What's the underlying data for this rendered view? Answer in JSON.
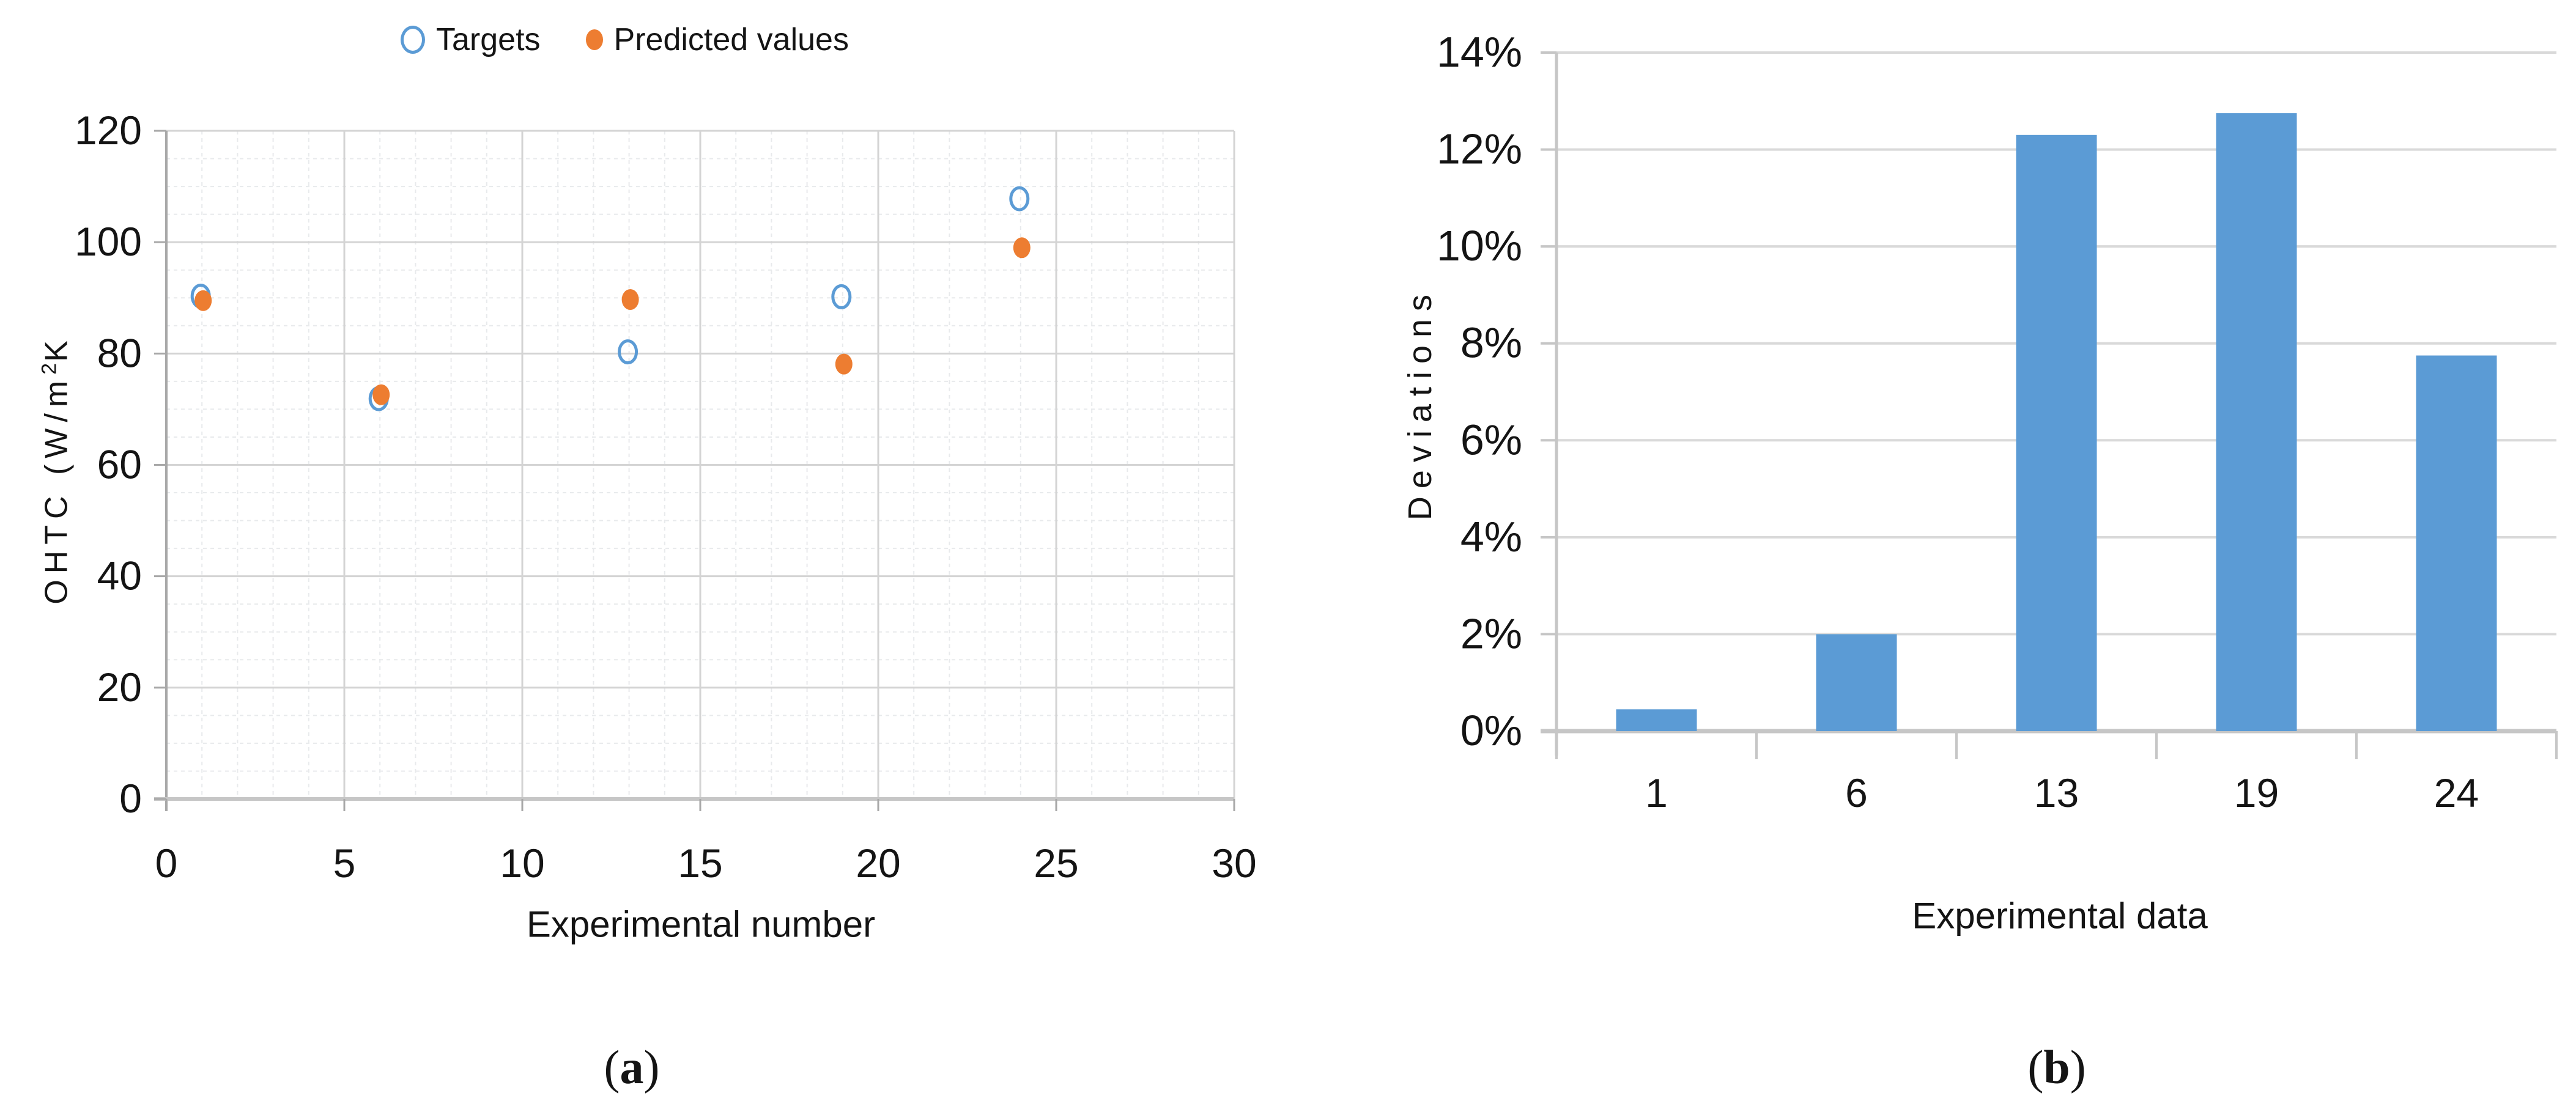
{
  "legend": {
    "items": [
      {
        "label": "Targets",
        "marker": "open-circle",
        "color": "#5B9BD5"
      },
      {
        "label": "Predicted values",
        "marker": "filled-circle",
        "color": "#ED7D31"
      }
    ]
  },
  "captions": {
    "open": "(",
    "a": "a",
    "b": "b",
    "close": ")"
  },
  "chart_data": [
    {
      "type": "scatter",
      "title": "",
      "xlabel": "Experimental number",
      "ylabel": "OHTC (W/m²K",
      "ylabel_parts": {
        "prefix": "OHTC (W/m",
        "sup": "2",
        "suffix": "K"
      },
      "xlim": [
        0,
        30
      ],
      "ylim": [
        0,
        120
      ],
      "x_ticks": [
        0,
        5,
        10,
        15,
        20,
        25,
        30
      ],
      "y_ticks": [
        0,
        20,
        40,
        60,
        80,
        100,
        120
      ],
      "x_minor_step": 1,
      "y_minor_step": 5,
      "grid": true,
      "legend_position": "top",
      "series": [
        {
          "name": "Targets",
          "marker": "open-circle",
          "color": "#5B9BD5",
          "x": [
            1,
            6,
            13,
            19,
            24
          ],
          "y": [
            90.3,
            71.9,
            80.3,
            90.2,
            107.8
          ]
        },
        {
          "name": "Predicted values",
          "marker": "filled-circle",
          "color": "#ED7D31",
          "x": [
            1,
            6,
            13,
            19,
            24
          ],
          "y": [
            89.5,
            72.6,
            89.7,
            78.1,
            99.0
          ]
        }
      ]
    },
    {
      "type": "bar",
      "title": "",
      "xlabel": "Experimental data",
      "ylabel": "Deviations",
      "categories": [
        "1",
        "6",
        "13",
        "19",
        "24"
      ],
      "values": [
        0.45,
        2.0,
        12.3,
        12.75,
        7.75
      ],
      "unit": "%",
      "ylim": [
        0,
        14
      ],
      "y_tick_labels": [
        "0%",
        "2%",
        "4%",
        "6%",
        "8%",
        "10%",
        "12%",
        "14%"
      ],
      "y_tick_values": [
        0,
        2,
        4,
        6,
        8,
        10,
        12,
        14
      ],
      "bar_color": "#5B9BD5",
      "grid": true,
      "legend_position": "none"
    }
  ],
  "colors": {
    "target_blue": "#5B9BD5",
    "predicted_orange": "#ED7D31",
    "bar_blue": "#5B9BD5",
    "grid_major": "#D4D4D4",
    "grid_minor": "#E8EAEC",
    "grid_b": "#D9D9D9",
    "axis_dark": "#A8A8A8",
    "axis_light": "#C6C6C6",
    "text": "#141414"
  }
}
